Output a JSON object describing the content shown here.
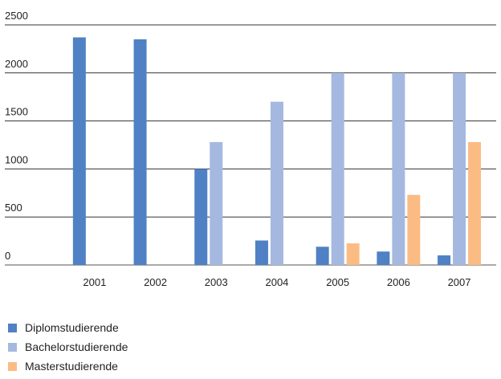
{
  "chart_data": {
    "type": "bar",
    "categories": [
      "2001",
      "2002",
      "2003",
      "2004",
      "2005",
      "2006",
      "2007"
    ],
    "series": [
      {
        "name": "Diplomstudierende",
        "color": "#4f81c4",
        "values": [
          2370,
          2350,
          1000,
          255,
          190,
          140,
          100
        ]
      },
      {
        "name": "Bachelorstudierende",
        "color": "#a5b9e0",
        "values": [
          0,
          0,
          1280,
          1700,
          2000,
          2000,
          2000
        ]
      },
      {
        "name": "Masterstudierende",
        "color": "#fbbc84",
        "values": [
          0,
          0,
          0,
          0,
          225,
          730,
          1280
        ]
      }
    ],
    "y_ticks": [
      "0",
      "500",
      "1000",
      "1500",
      "2000",
      "2500"
    ],
    "ylim": [
      0,
      2500
    ],
    "grid": true,
    "legend_position": "bottom-left"
  }
}
